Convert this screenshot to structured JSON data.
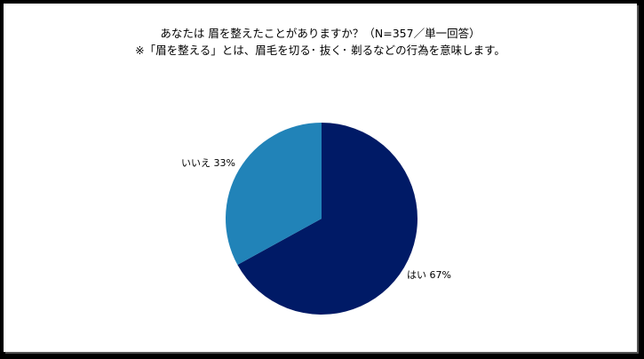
{
  "chart_data": {
    "type": "pie",
    "title": "あなたは 眉を整えたことがありますか？（N=357／単一回答）",
    "subtitle": "※「眉を整える」とは、眉毛を切る･ 抜く･ 剃るなどの行為を意味します。",
    "slices": [
      {
        "label": "はい",
        "value": 67,
        "display": "はい 67%",
        "color": "#001A66"
      },
      {
        "label": "いいえ",
        "value": 33,
        "display": "いいえ 33%",
        "color": "#2183B8"
      }
    ],
    "unit": "%",
    "start_angle": "12 o'clock, clockwise",
    "legend": "none"
  }
}
